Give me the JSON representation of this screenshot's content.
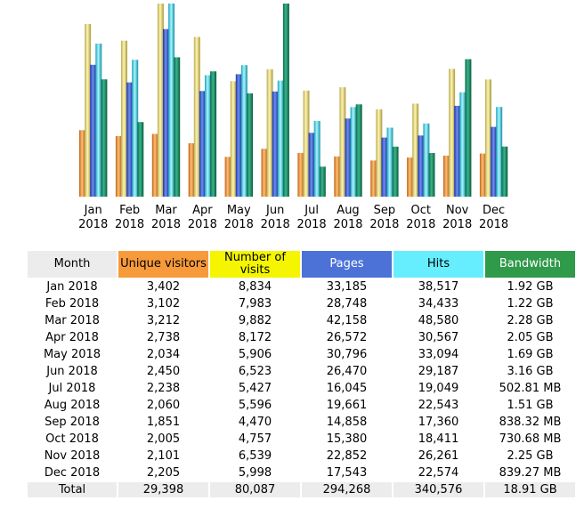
{
  "colors": {
    "unique_visitors": "#f79a3b",
    "number_of_visits": "#f5f500",
    "pages": "#4c72d8",
    "hits": "#66eeff",
    "bandwidth": "#2e9a4a",
    "header_gray": "#ececec"
  },
  "chart_data": {
    "type": "bar",
    "categories": [
      "Jan 2018",
      "Feb 2018",
      "Mar 2018",
      "Apr 2018",
      "May 2018",
      "Jun 2018",
      "Jul 2018",
      "Aug 2018",
      "Sep 2018",
      "Oct 2018",
      "Nov 2018",
      "Dec 2018"
    ],
    "category_lines": [
      [
        "Jan",
        "2018"
      ],
      [
        "Feb",
        "2018"
      ],
      [
        "Mar",
        "2018"
      ],
      [
        "Apr",
        "2018"
      ],
      [
        "May",
        "2018"
      ],
      [
        "Jun",
        "2018"
      ],
      [
        "Jul",
        "2018"
      ],
      [
        "Aug",
        "2018"
      ],
      [
        "Sep",
        "2018"
      ],
      [
        "Oct",
        "2018"
      ],
      [
        "Nov",
        "2018"
      ],
      [
        "Dec",
        "2018"
      ]
    ],
    "grid": false,
    "legend": "none",
    "series": [
      {
        "name": "Unique visitors",
        "values": [
          3402,
          3102,
          3212,
          2738,
          2034,
          2450,
          2238,
          2060,
          1851,
          2005,
          2101,
          2205
        ]
      },
      {
        "name": "Number of visits",
        "values": [
          8834,
          7983,
          9882,
          8172,
          5906,
          6523,
          5427,
          5596,
          4470,
          4757,
          6539,
          5998
        ]
      },
      {
        "name": "Pages",
        "values": [
          33185,
          28748,
          42158,
          26572,
          30796,
          26470,
          16045,
          19661,
          14858,
          15380,
          22852,
          17543
        ]
      },
      {
        "name": "Hits",
        "values": [
          38517,
          34433,
          48580,
          30567,
          33094,
          29187,
          19049,
          22543,
          17360,
          18411,
          26261,
          22574
        ]
      },
      {
        "name": "Bandwidth",
        "unit": "GB",
        "values": [
          1.92,
          1.22,
          2.28,
          2.05,
          1.69,
          3.16,
          0.491,
          1.51,
          0.818,
          0.714,
          2.25,
          0.82
        ]
      }
    ]
  },
  "table": {
    "headers": {
      "month": "Month",
      "unique_visitors": "Unique visitors",
      "number_of_visits": "Number of visits",
      "pages": "Pages",
      "hits": "Hits",
      "bandwidth": "Bandwidth"
    },
    "rows": [
      [
        "Jan 2018",
        "3,402",
        "8,834",
        "33,185",
        "38,517",
        "1.92 GB"
      ],
      [
        "Feb 2018",
        "3,102",
        "7,983",
        "28,748",
        "34,433",
        "1.22 GB"
      ],
      [
        "Mar 2018",
        "3,212",
        "9,882",
        "42,158",
        "48,580",
        "2.28 GB"
      ],
      [
        "Apr 2018",
        "2,738",
        "8,172",
        "26,572",
        "30,567",
        "2.05 GB"
      ],
      [
        "May 2018",
        "2,034",
        "5,906",
        "30,796",
        "33,094",
        "1.69 GB"
      ],
      [
        "Jun 2018",
        "2,450",
        "6,523",
        "26,470",
        "29,187",
        "3.16 GB"
      ],
      [
        "Jul 2018",
        "2,238",
        "5,427",
        "16,045",
        "19,049",
        "502.81 MB"
      ],
      [
        "Aug 2018",
        "2,060",
        "5,596",
        "19,661",
        "22,543",
        "1.51 GB"
      ],
      [
        "Sep 2018",
        "1,851",
        "4,470",
        "14,858",
        "17,360",
        "838.32 MB"
      ],
      [
        "Oct 2018",
        "2,005",
        "4,757",
        "15,380",
        "18,411",
        "730.68 MB"
      ],
      [
        "Nov 2018",
        "2,101",
        "6,539",
        "22,852",
        "26,261",
        "2.25 GB"
      ],
      [
        "Dec 2018",
        "2,205",
        "5,998",
        "17,543",
        "22,574",
        "839.27 MB"
      ]
    ],
    "total": [
      "Total",
      "29,398",
      "80,087",
      "294,268",
      "340,576",
      "18.91 GB"
    ]
  }
}
